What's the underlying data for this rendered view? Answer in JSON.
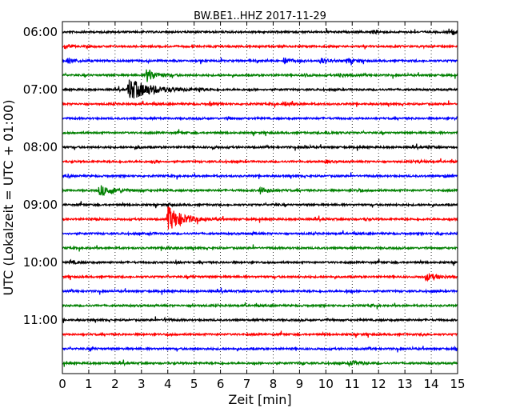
{
  "chart_data": {
    "type": "line",
    "title": "BW.BE1..HHZ 2017-11-29",
    "xlabel": "Zeit  [min]",
    "ylabel": "UTC (Lokalzeit = UTC + 01:00)",
    "xlim": [
      0,
      15
    ],
    "x_ticks": [
      0,
      1,
      2,
      3,
      4,
      5,
      6,
      7,
      8,
      9,
      10,
      11,
      12,
      13,
      14,
      15
    ],
    "y_tick_labels": [
      "06:00",
      "07:00",
      "08:00",
      "09:00",
      "10:00",
      "11:00"
    ],
    "trace_minutes": 15,
    "start_time": "06:00",
    "color_cycle": [
      "#000000",
      "#ff0000",
      "#0000ff",
      "#008000"
    ],
    "grid": "vertical dotted",
    "traces": [
      {
        "start": "06:00",
        "color": "#000000",
        "events": [
          {
            "x": 14.8,
            "amp": 0.7,
            "dur": 0.3
          },
          {
            "x": 11.8,
            "amp": 0.4,
            "dur": 0.4
          }
        ]
      },
      {
        "start": "06:15",
        "color": "#ff0000",
        "events": [
          {
            "x": 0.1,
            "amp": 0.7,
            "dur": 0.3
          },
          {
            "x": 12.3,
            "amp": 0.25,
            "dur": 0.2
          }
        ]
      },
      {
        "start": "06:30",
        "color": "#0000ff",
        "events": [
          {
            "x": 0.2,
            "amp": 0.6,
            "dur": 0.6
          },
          {
            "x": 8.4,
            "amp": 0.8,
            "dur": 0.5
          },
          {
            "x": 9.8,
            "amp": 0.8,
            "dur": 0.5
          },
          {
            "x": 10.8,
            "amp": 0.75,
            "dur": 0.4
          }
        ]
      },
      {
        "start": "06:45",
        "color": "#008000",
        "events": [
          {
            "x": 3.2,
            "amp": 1.9,
            "dur": 0.6
          },
          {
            "x": 10.5,
            "amp": 0.55,
            "dur": 0.5
          },
          {
            "x": 9.2,
            "amp": 0.4,
            "dur": 0.3
          }
        ]
      },
      {
        "start": "07:00",
        "color": "#000000",
        "events": [
          {
            "x": 2.5,
            "amp": 3.0,
            "dur": 1.5
          },
          {
            "x": 5.2,
            "amp": 0.45,
            "dur": 0.2
          }
        ]
      },
      {
        "start": "07:15",
        "color": "#ff0000",
        "events": [
          {
            "x": 5.6,
            "amp": 0.45,
            "dur": 0.3
          },
          {
            "x": 8.4,
            "amp": 0.5,
            "dur": 0.5
          }
        ]
      },
      {
        "start": "07:30",
        "color": "#0000ff",
        "events": [
          {
            "x": 6.3,
            "amp": 0.4,
            "dur": 0.2
          },
          {
            "x": 14.9,
            "amp": 0.35,
            "dur": 0.2
          }
        ]
      },
      {
        "start": "07:45",
        "color": "#008000",
        "events": [
          {
            "x": 10.0,
            "amp": 0.35,
            "dur": 0.5
          },
          {
            "x": 4.5,
            "amp": 0.3,
            "dur": 0.2
          }
        ]
      },
      {
        "start": "08:00",
        "color": "#000000",
        "events": [
          {
            "x": 2.8,
            "amp": 0.4,
            "dur": 0.2
          },
          {
            "x": 5.7,
            "amp": 0.4,
            "dur": 0.2
          },
          {
            "x": 9.2,
            "amp": 0.4,
            "dur": 0.2
          },
          {
            "x": 13.9,
            "amp": 0.4,
            "dur": 0.2
          }
        ]
      },
      {
        "start": "08:15",
        "color": "#ff0000",
        "events": [
          {
            "x": 3.5,
            "amp": 0.45,
            "dur": 0.2
          },
          {
            "x": 10.0,
            "amp": 0.45,
            "dur": 0.2
          },
          {
            "x": 13.5,
            "amp": 0.3,
            "dur": 0.3
          }
        ]
      },
      {
        "start": "08:30",
        "color": "#0000ff",
        "events": [
          {
            "x": 0.2,
            "amp": 0.35,
            "dur": 0.2
          },
          {
            "x": 14.5,
            "amp": 0.35,
            "dur": 0.2
          }
        ]
      },
      {
        "start": "08:45",
        "color": "#008000",
        "events": [
          {
            "x": 1.4,
            "amp": 1.4,
            "dur": 1.0
          },
          {
            "x": 7.5,
            "amp": 0.9,
            "dur": 0.6
          },
          {
            "x": 11.2,
            "amp": 0.35,
            "dur": 0.4
          }
        ]
      },
      {
        "start": "09:00",
        "color": "#000000",
        "events": [
          {
            "x": 4.0,
            "amp": 0.45,
            "dur": 0.2
          },
          {
            "x": 8.0,
            "amp": 0.3,
            "dur": 0.2
          }
        ]
      },
      {
        "start": "09:15",
        "color": "#ff0000",
        "events": [
          {
            "x": 4.0,
            "amp": 3.4,
            "dur": 1.0
          },
          {
            "x": 1.3,
            "amp": 0.4,
            "dur": 0.2
          },
          {
            "x": 11.5,
            "amp": 0.3,
            "dur": 0.2
          }
        ]
      },
      {
        "start": "09:30",
        "color": "#0000ff",
        "events": [
          {
            "x": 3.3,
            "amp": 0.35,
            "dur": 0.2
          },
          {
            "x": 7.2,
            "amp": 0.35,
            "dur": 0.2
          },
          {
            "x": 14.2,
            "amp": 0.45,
            "dur": 0.2
          }
        ]
      },
      {
        "start": "09:45",
        "color": "#008000",
        "events": [
          {
            "x": 3.9,
            "amp": 0.5,
            "dur": 0.3
          }
        ]
      },
      {
        "start": "10:00",
        "color": "#000000",
        "events": [
          {
            "x": 0.3,
            "amp": 0.5,
            "dur": 0.4
          },
          {
            "x": 4.3,
            "amp": 0.45,
            "dur": 0.2
          }
        ]
      },
      {
        "start": "10:15",
        "color": "#ff0000",
        "events": [
          {
            "x": 13.8,
            "amp": 1.0,
            "dur": 0.8
          },
          {
            "x": 4.9,
            "amp": 0.3,
            "dur": 0.2
          }
        ]
      },
      {
        "start": "10:30",
        "color": "#0000ff",
        "events": [
          {
            "x": 10.8,
            "amp": 0.3,
            "dur": 0.2
          },
          {
            "x": 14.0,
            "amp": 0.35,
            "dur": 0.2
          }
        ]
      },
      {
        "start": "10:45",
        "color": "#008000",
        "events": [
          {
            "x": 4.9,
            "amp": 0.3,
            "dur": 0.2
          },
          {
            "x": 11.7,
            "amp": 0.35,
            "dur": 0.2
          }
        ]
      },
      {
        "start": "11:00",
        "color": "#000000",
        "events": [
          {
            "x": 3.9,
            "amp": 0.45,
            "dur": 0.2
          },
          {
            "x": 10.0,
            "amp": 0.3,
            "dur": 0.2
          }
        ]
      },
      {
        "start": "11:15",
        "color": "#ff0000",
        "events": [
          {
            "x": 4.0,
            "amp": 0.3,
            "dur": 0.2
          },
          {
            "x": 13.7,
            "amp": 0.4,
            "dur": 0.2
          }
        ]
      },
      {
        "start": "11:30",
        "color": "#0000ff",
        "events": [
          {
            "x": 1.1,
            "amp": 0.4,
            "dur": 0.2
          },
          {
            "x": 14.9,
            "amp": 0.4,
            "dur": 0.2
          },
          {
            "x": 5.0,
            "amp": 0.3,
            "dur": 0.2
          }
        ]
      },
      {
        "start": "11:45",
        "color": "#008000",
        "events": [
          {
            "x": 10.9,
            "amp": 0.7,
            "dur": 0.6
          },
          {
            "x": 9.1,
            "amp": 0.35,
            "dur": 0.2
          }
        ]
      }
    ]
  }
}
